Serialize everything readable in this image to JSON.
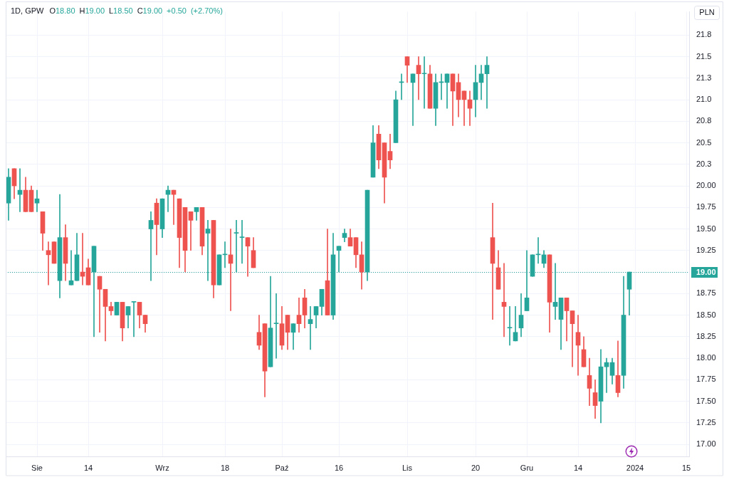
{
  "chart_data": {
    "type": "candlestick",
    "title": "1D, GPW",
    "subtitle": "O18.80 H19.00 L18.50 C19.00 +0.50 (+2.70%)",
    "ylabel": "PLN",
    "categories": [
      null,
      null,
      null,
      null,
      null,
      "Sie",
      null,
      null,
      null,
      null,
      null,
      null,
      null,
      null,
      "14",
      null,
      null,
      null,
      null,
      null,
      null,
      null,
      null,
      null,
      null,
      null,
      null,
      "Wrz",
      null,
      null,
      null,
      null,
      null,
      null,
      null,
      null,
      null,
      null,
      "18",
      null,
      null,
      null,
      null,
      null,
      null,
      null,
      null,
      null,
      "Paź",
      null,
      null,
      null,
      null,
      null,
      null,
      null,
      null,
      null,
      "16",
      null,
      null,
      null,
      null,
      null,
      null,
      null,
      null,
      null,
      null,
      null,
      "Lis",
      null,
      null,
      null,
      null,
      null,
      null,
      null,
      null,
      null,
      null,
      null,
      "20",
      null,
      null,
      null,
      null,
      null,
      null,
      null,
      null,
      "Gru",
      null,
      null,
      null,
      null,
      null,
      null,
      null,
      null,
      "14",
      null,
      null,
      null,
      null,
      null,
      null,
      null,
      null,
      null,
      "2024",
      null,
      null,
      null,
      null,
      null,
      null,
      null,
      null,
      "15"
    ],
    "ohlc": [
      [
        19.8,
        20.2,
        19.6,
        20.1
      ],
      [
        20.2,
        20.2,
        19.85,
        20.0
      ],
      [
        19.9,
        20.2,
        19.7,
        19.95
      ],
      [
        19.95,
        20.1,
        19.7,
        19.7
      ],
      [
        19.95,
        20.0,
        19.7,
        19.7
      ],
      [
        19.8,
        19.95,
        19.7,
        19.85
      ],
      [
        19.7,
        19.7,
        19.25,
        19.45
      ],
      [
        19.25,
        19.35,
        18.85,
        19.2
      ],
      [
        19.35,
        19.35,
        19.1,
        19.1
      ],
      [
        18.9,
        19.9,
        18.7,
        19.4
      ],
      [
        19.4,
        19.55,
        18.9,
        19.1
      ],
      [
        18.85,
        19.25,
        18.85,
        18.9
      ],
      [
        18.9,
        19.45,
        18.9,
        19.2
      ],
      [
        19.0,
        19.45,
        18.85,
        18.95
      ],
      [
        19.05,
        19.15,
        18.85,
        18.85
      ],
      [
        19.0,
        19.3,
        18.25,
        19.3
      ],
      [
        18.95,
        18.95,
        18.3,
        18.8
      ],
      [
        18.8,
        18.8,
        18.2,
        18.6
      ],
      [
        18.6,
        18.65,
        18.5,
        18.55
      ],
      [
        18.5,
        18.65,
        18.5,
        18.65
      ],
      [
        18.65,
        18.65,
        18.2,
        18.35
      ],
      [
        18.5,
        18.6,
        18.35,
        18.6
      ],
      [
        18.65,
        18.65,
        18.25,
        18.65
      ],
      [
        18.65,
        18.65,
        18.35,
        18.5
      ],
      [
        18.5,
        18.5,
        18.3,
        18.4
      ],
      [
        19.5,
        19.7,
        18.9,
        19.6
      ],
      [
        19.8,
        19.85,
        19.2,
        19.55
      ],
      [
        19.5,
        19.85,
        19.4,
        19.85
      ],
      [
        19.9,
        20.0,
        19.7,
        19.95
      ],
      [
        19.95,
        19.95,
        19.55,
        19.9
      ],
      [
        19.85,
        19.85,
        19.05,
        19.4
      ],
      [
        19.75,
        19.75,
        19.0,
        19.25
      ],
      [
        19.7,
        19.7,
        19.25,
        19.6
      ],
      [
        19.7,
        19.75,
        19.6,
        19.75
      ],
      [
        19.75,
        19.75,
        19.2,
        19.3
      ],
      [
        19.45,
        19.6,
        18.9,
        19.5
      ],
      [
        19.6,
        19.6,
        18.7,
        18.85
      ],
      [
        18.85,
        19.2,
        18.85,
        19.2
      ],
      [
        19.2,
        19.35,
        19.05,
        19.2
      ],
      [
        19.2,
        19.5,
        18.55,
        19.1
      ],
      [
        19.45,
        19.6,
        19.0,
        19.45
      ],
      [
        19.4,
        19.6,
        19.1,
        19.4
      ],
      [
        19.4,
        19.4,
        18.95,
        19.3
      ],
      [
        19.25,
        19.4,
        19.05,
        19.05
      ],
      [
        18.3,
        18.5,
        18.1,
        18.15
      ],
      [
        18.4,
        18.4,
        17.55,
        17.85
      ],
      [
        17.9,
        18.95,
        17.9,
        18.35
      ],
      [
        18.4,
        18.75,
        18.0,
        18.4
      ],
      [
        18.4,
        18.6,
        18.1,
        18.15
      ],
      [
        18.5,
        18.5,
        18.1,
        18.3
      ],
      [
        18.3,
        18.4,
        18.1,
        18.4
      ],
      [
        18.5,
        18.7,
        18.3,
        18.4
      ],
      [
        18.7,
        18.8,
        18.35,
        18.5
      ],
      [
        18.4,
        18.6,
        18.1,
        18.45
      ],
      [
        18.5,
        18.6,
        18.35,
        18.6
      ],
      [
        18.6,
        18.8,
        18.5,
        18.8
      ],
      [
        18.9,
        19.5,
        18.5,
        18.5
      ],
      [
        18.5,
        19.45,
        18.45,
        19.2
      ],
      [
        19.25,
        19.3,
        19.0,
        19.3
      ],
      [
        19.4,
        19.5,
        19.35,
        19.45
      ],
      [
        19.4,
        19.5,
        19.3,
        19.3
      ],
      [
        19.4,
        19.4,
        19.05,
        19.2
      ],
      [
        19.2,
        19.35,
        18.8,
        19.0
      ],
      [
        19.0,
        19.95,
        18.9,
        19.95
      ],
      [
        20.1,
        20.7,
        20.1,
        20.5
      ],
      [
        20.6,
        20.7,
        20.2,
        20.3
      ],
      [
        20.5,
        20.5,
        19.8,
        20.1
      ],
      [
        20.4,
        20.6,
        20.2,
        20.3
      ],
      [
        20.5,
        21.1,
        20.5,
        21.0
      ],
      [
        21.2,
        21.3,
        21.0,
        21.2
      ],
      [
        21.5,
        21.5,
        21.2,
        21.4
      ],
      [
        21.2,
        21.3,
        20.7,
        21.3
      ],
      [
        21.4,
        21.5,
        21.0,
        21.3
      ],
      [
        21.3,
        21.5,
        20.9,
        21.3
      ],
      [
        21.3,
        21.4,
        20.9,
        20.9
      ],
      [
        20.9,
        21.3,
        20.7,
        21.2
      ],
      [
        21.2,
        21.3,
        21.0,
        21.2
      ],
      [
        21.2,
        21.3,
        20.9,
        21.3
      ],
      [
        21.3,
        21.3,
        20.7,
        21.1
      ],
      [
        21.2,
        21.3,
        20.8,
        21.0
      ],
      [
        21.1,
        21.1,
        20.7,
        21.0
      ],
      [
        21.0,
        21.1,
        20.7,
        20.9
      ],
      [
        21.0,
        21.4,
        20.8,
        21.2
      ],
      [
        21.2,
        21.4,
        21.0,
        21.3
      ],
      [
        21.3,
        21.5,
        20.9,
        21.4
      ],
      [
        19.4,
        19.8,
        18.45,
        19.1
      ],
      [
        19.05,
        19.25,
        18.8,
        18.8
      ],
      [
        18.65,
        19.1,
        18.25,
        18.6
      ],
      [
        18.35,
        18.6,
        18.15,
        18.35
      ],
      [
        18.2,
        18.6,
        18.2,
        18.3
      ],
      [
        18.35,
        18.75,
        18.25,
        18.5
      ],
      [
        18.55,
        19.25,
        18.55,
        18.7
      ],
      [
        18.95,
        19.2,
        18.95,
        19.2
      ],
      [
        19.2,
        19.4,
        19.1,
        19.2
      ],
      [
        19.1,
        19.25,
        19.05,
        19.2
      ],
      [
        19.2,
        19.2,
        18.3,
        18.65
      ],
      [
        18.6,
        19.1,
        18.45,
        18.65
      ],
      [
        18.45,
        18.7,
        18.1,
        18.7
      ],
      [
        18.7,
        18.7,
        18.2,
        18.55
      ],
      [
        18.55,
        18.55,
        17.9,
        18.4
      ],
      [
        18.3,
        18.5,
        17.8,
        18.15
      ],
      [
        18.1,
        18.25,
        17.9,
        17.9
      ],
      [
        17.8,
        18.0,
        17.45,
        17.65
      ],
      [
        17.6,
        17.75,
        17.3,
        17.45
      ],
      [
        17.5,
        18.1,
        17.25,
        17.9
      ],
      [
        17.9,
        18.0,
        17.6,
        17.95
      ],
      [
        17.8,
        18.0,
        17.7,
        17.95
      ],
      [
        17.8,
        18.2,
        17.55,
        17.6
      ],
      [
        17.8,
        18.95,
        17.65,
        18.5
      ],
      [
        18.8,
        19.0,
        18.5,
        19.0
      ],
      null,
      null,
      null,
      null,
      null,
      null,
      null,
      null,
      null,
      null
    ],
    "colors": [
      "#26a69a",
      "#ef5350",
      "#26a69a",
      "#ef5350",
      "#ef5350",
      "#26a69a",
      "#ef5350",
      "#ef5350",
      "#ef5350",
      "#26a69a",
      "#ef5350",
      "#26a69a",
      "#26a69a",
      "#ef5350",
      "#ef5350",
      "#26a69a",
      "#ef5350",
      "#ef5350",
      "#ef5350",
      "#26a69a",
      "#ef5350",
      "#26a69a",
      "#26a69a",
      "#ef5350",
      "#ef5350",
      "#26a69a",
      "#ef5350",
      "#26a69a",
      "#26a69a",
      "#ef5350",
      "#ef5350",
      "#ef5350",
      "#ef5350",
      "#26a69a",
      "#ef5350",
      "#26a69a",
      "#ef5350",
      "#26a69a",
      "#26a69a",
      "#ef5350",
      "#26a69a",
      "#26a69a",
      "#ef5350",
      "#ef5350",
      "#ef5350",
      "#ef5350",
      "#26a69a",
      "#26a69a",
      "#ef5350",
      "#ef5350",
      "#26a69a",
      "#ef5350",
      "#ef5350",
      "#26a69a",
      "#26a69a",
      "#26a69a",
      "#ef5350",
      "#26a69a",
      "#26a69a",
      "#26a69a",
      "#ef5350",
      "#ef5350",
      "#ef5350",
      "#26a69a",
      "#26a69a",
      "#ef5350",
      "#ef5350",
      "#ef5350",
      "#26a69a",
      "#26a69a",
      "#ef5350",
      "#26a69a",
      "#ef5350",
      "#26a69a",
      "#ef5350",
      "#26a69a",
      "#26a69a",
      "#26a69a",
      "#ef5350",
      "#ef5350",
      "#ef5350",
      "#ef5350",
      "#26a69a",
      "#26a69a",
      "#26a69a",
      "#ef5350",
      "#ef5350",
      "#ef5350",
      "#26a69a",
      "#26a69a",
      "#26a69a",
      "#26a69a",
      "#26a69a",
      "#26a69a",
      "#26a69a",
      "#ef5350",
      "#26a69a",
      "#26a69a",
      "#ef5350",
      "#ef5350",
      "#ef5350",
      "#ef5350",
      "#ef5350",
      "#ef5350",
      "#26a69a",
      "#26a69a",
      "#26a69a",
      "#ef5350",
      "#26a69a",
      "#26a69a",
      null,
      null,
      null,
      null,
      null,
      null,
      null,
      null,
      null,
      null
    ],
    "ylim": [
      16.86,
      22.02
    ],
    "yticks": [
      {
        "value": 17,
        "label": "17.00"
      },
      {
        "value": 17.25,
        "label": "17.25"
      },
      {
        "value": 17.5,
        "label": "17.50"
      },
      {
        "value": 17.75,
        "label": "17.75"
      },
      {
        "value": 18,
        "label": "18.00"
      },
      {
        "value": 18.25,
        "label": "18.25"
      },
      {
        "value": 18.5,
        "label": "18.50"
      },
      {
        "value": 18.75,
        "label": "18.75"
      },
      {
        "value": 19,
        "label": null
      },
      {
        "value": 19.25,
        "label": "19.25"
      },
      {
        "value": 19.5,
        "label": "19.50"
      },
      {
        "value": 19.75,
        "label": "19.75"
      },
      {
        "value": 20,
        "label": "20.00"
      },
      {
        "value": 20.25,
        "label": "20.3"
      },
      {
        "value": 20.5,
        "label": "20.5"
      },
      {
        "value": 20.75,
        "label": "20.8"
      },
      {
        "value": 21,
        "label": "21.0"
      },
      {
        "value": 21.25,
        "label": "21.3"
      },
      {
        "value": 21.5,
        "label": "21.5"
      },
      {
        "value": 21.75,
        "label": "21.8"
      }
    ],
    "grid": true,
    "ref_lines": [
      {
        "axis": "y",
        "value": 19.0,
        "label": "19.00",
        "color": "#26a69a",
        "line_style": "dotted"
      }
    ]
  }
}
